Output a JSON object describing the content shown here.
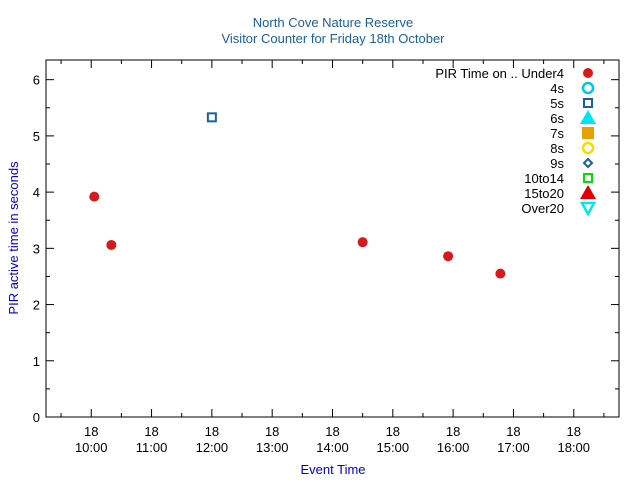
{
  "chart_data": {
    "type": "scatter",
    "title": "North Cove Nature Reserve",
    "subtitle": "Visitor Counter for Friday 18th October",
    "xlabel": "Event Time",
    "ylabel": "PIR active time in seconds",
    "ylim": [
      0,
      6.35
    ],
    "yticks": [
      0,
      1,
      2,
      3,
      4,
      5,
      6
    ],
    "xlim": [
      "09:15",
      "18:45"
    ],
    "xticks": [
      {
        "value": "10:00",
        "day": "18",
        "time": "10:00"
      },
      {
        "value": "11:00",
        "day": "18",
        "time": "11:00"
      },
      {
        "value": "12:00",
        "day": "18",
        "time": "12:00"
      },
      {
        "value": "13:00",
        "day": "18",
        "time": "13:00"
      },
      {
        "value": "14:00",
        "day": "18",
        "time": "14:00"
      },
      {
        "value": "15:00",
        "day": "18",
        "time": "15:00"
      },
      {
        "value": "16:00",
        "day": "18",
        "time": "16:00"
      },
      {
        "value": "17:00",
        "day": "18",
        "time": "17:00"
      },
      {
        "value": "18:00",
        "day": "18",
        "time": "18:00"
      }
    ],
    "grid": false,
    "legend_position": "top-right",
    "series": [
      {
        "name": "PIR Time on .. Under4",
        "marker": "filled-circle",
        "color": "#d7191c",
        "points": [
          {
            "x": "10:03",
            "y": 3.92
          },
          {
            "x": "10:20",
            "y": 3.06
          },
          {
            "x": "14:30",
            "y": 3.11
          },
          {
            "x": "15:55",
            "y": 2.86
          },
          {
            "x": "16:47",
            "y": 2.55
          }
        ]
      },
      {
        "name": "4s",
        "marker": "open-circle",
        "color": "#00c8e0",
        "points": []
      },
      {
        "name": "5s",
        "marker": "open-square",
        "color": "#1a5f9e",
        "points": [
          {
            "x": "12:00",
            "y": 5.33
          }
        ]
      },
      {
        "name": "6s",
        "marker": "filled-triangle-up",
        "color": "#00e5ee",
        "points": []
      },
      {
        "name": "7s",
        "marker": "filled-square",
        "color": "#e8a000",
        "points": []
      },
      {
        "name": "8s",
        "marker": "open-circle",
        "color": "#f0e000",
        "points": []
      },
      {
        "name": "9s",
        "marker": "open-diamond",
        "color": "#1a5f9e",
        "points": []
      },
      {
        "name": "10to14",
        "marker": "open-square",
        "color": "#00e000",
        "points": []
      },
      {
        "name": "15to20",
        "marker": "filled-triangle-up",
        "color": "#e00000",
        "points": []
      },
      {
        "name": "Over20",
        "marker": "open-triangle-down",
        "color": "#00e5ee",
        "points": []
      }
    ]
  }
}
